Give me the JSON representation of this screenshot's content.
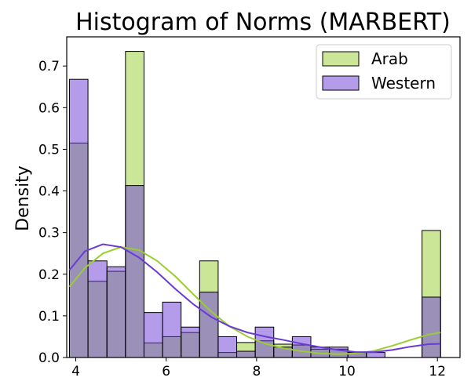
{
  "chart_data": {
    "type": "histogram",
    "title": "Histogram of Norms (MARBERT)",
    "xlabel": "",
    "ylabel": "Density",
    "xlim": [
      3.8,
      12.5
    ],
    "ylim": [
      0,
      0.77
    ],
    "xticks": [
      4,
      6,
      8,
      10,
      12
    ],
    "yticks": [
      0.0,
      0.1,
      0.2,
      0.3,
      0.4,
      0.5,
      0.6,
      0.7
    ],
    "bin_edges": [
      3.86,
      4.27,
      4.69,
      5.1,
      5.51,
      5.92,
      6.33,
      6.74,
      7.15,
      7.56,
      7.97,
      8.38,
      8.79,
      9.2,
      9.61,
      10.02,
      10.43,
      10.84,
      11.25,
      11.66,
      12.07
    ],
    "legend_position": "top-right",
    "grid": false,
    "series": [
      {
        "name": "Arab",
        "color": "#9acd32",
        "values": [
          0.515,
          0.183,
          0.207,
          0.735,
          0.035,
          0.05,
          0.06,
          0.232,
          0.012,
          0.036,
          0.04,
          0.032,
          0.03,
          0.02,
          0.02,
          0.012,
          0.0,
          0.0,
          0.0,
          0.305
        ],
        "kde_x": [
          3.86,
          4.2,
          4.6,
          5.0,
          5.4,
          5.8,
          6.2,
          6.6,
          7.0,
          7.4,
          7.8,
          8.2,
          8.6,
          9.0,
          9.4,
          9.8,
          10.2,
          10.6,
          11.0,
          11.4,
          11.8,
          12.07
        ],
        "kde_y": [
          0.17,
          0.215,
          0.25,
          0.265,
          0.258,
          0.232,
          0.195,
          0.152,
          0.11,
          0.075,
          0.05,
          0.033,
          0.022,
          0.015,
          0.01,
          0.008,
          0.01,
          0.016,
          0.028,
          0.042,
          0.055,
          0.06
        ]
      },
      {
        "name": "Western",
        "color": "#6a3ad6",
        "values": [
          0.668,
          0.232,
          0.218,
          0.413,
          0.108,
          0.133,
          0.073,
          0.157,
          0.05,
          0.015,
          0.073,
          0.025,
          0.05,
          0.025,
          0.025,
          0.012,
          0.012,
          0.0,
          0.0,
          0.145
        ],
        "kde_x": [
          3.86,
          4.2,
          4.6,
          5.0,
          5.4,
          5.8,
          6.2,
          6.6,
          7.0,
          7.4,
          7.8,
          8.2,
          8.6,
          9.0,
          9.4,
          9.8,
          10.2,
          10.6,
          11.0,
          11.4,
          11.8,
          12.07
        ],
        "kde_y": [
          0.21,
          0.255,
          0.272,
          0.265,
          0.24,
          0.205,
          0.165,
          0.128,
          0.097,
          0.075,
          0.06,
          0.05,
          0.042,
          0.033,
          0.025,
          0.018,
          0.013,
          0.013,
          0.018,
          0.026,
          0.032,
          0.033
        ]
      }
    ]
  }
}
